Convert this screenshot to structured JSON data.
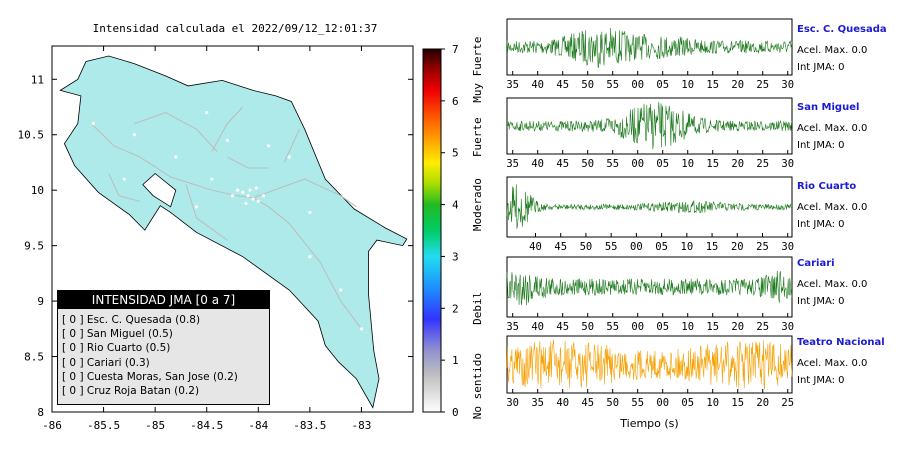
{
  "map_title": "Intensidad calculada el 2022/09/12_12:01:37",
  "colorbar": {
    "ticks": [
      "0",
      "1",
      "2",
      "3",
      "4",
      "5",
      "6",
      "7"
    ],
    "labels": [
      {
        "text": "No sentido",
        "at": 0.5
      },
      {
        "text": "Debil",
        "at": 2
      },
      {
        "text": "Moderado",
        "at": 4
      },
      {
        "text": "Fuerte",
        "at": 5.3
      },
      {
        "text": "Muy Fuerte",
        "at": 6.6
      }
    ]
  },
  "legend": {
    "header": "INTENSIDAD JMA [0 a 7]",
    "items": [
      "[ 0 ]  Esc. C. Quesada (0.8)",
      "[ 0 ]  San Miguel (0.5)",
      "[ 0 ]  Rio Cuarto (0.5)",
      "[ 0 ]  Cariari (0.3)",
      "[ 0 ]  Cuesta Moras, San Jose (0.2)",
      "[ 0 ]  Cruz Roja Batan (0.2)"
    ]
  },
  "stations": [
    {
      "name": "Esc. C. Quesada",
      "acel": "Acel. Max. 0.0",
      "int": "Int JMA: 0"
    },
    {
      "name": "San Miguel",
      "acel": "Acel. Max. 0.0",
      "int": "Int JMA: 0"
    },
    {
      "name": "Rio Cuarto",
      "acel": "Acel. Max. 0.0",
      "int": "Int JMA: 0"
    },
    {
      "name": "Cariari",
      "acel": "Acel. Max. 0.0",
      "int": "Int JMA: 0"
    },
    {
      "name": "Teatro Nacional",
      "acel": "Acel. Max. 0.0",
      "int": "Int JMA: 0"
    }
  ],
  "xlabel": "Tiempo (s)",
  "colors": {
    "trace": "#1e7a1e",
    "trace_highlight": "#f5a000",
    "land": "#aeeaea",
    "station_name": "#1b1bd0"
  },
  "chart_data": [
    {
      "type": "scatter",
      "title": "Intensidad calculada el 2022/09/12_12:01:37",
      "xlim": [
        -86,
        -82.5
      ],
      "ylim": [
        8,
        11.3
      ],
      "x_ticks": [
        "-86",
        "-85.5",
        "-85",
        "-84.5",
        "-84",
        "-83.5",
        "-83"
      ],
      "y_ticks": [
        "8",
        "8.5",
        "9",
        "9.5",
        "10",
        "10.5",
        "11"
      ],
      "x_tick_values": [
        -86,
        -85.5,
        -85,
        -84.5,
        -84,
        -83.5,
        -83
      ],
      "y_tick_values": [
        8,
        8.5,
        9,
        9.5,
        10,
        10.5,
        11
      ]
    },
    {
      "type": "line",
      "series": [
        {
          "name": "Esc. C. Quesada"
        }
      ],
      "tick_labels": [
        "35",
        "40",
        "45",
        "50",
        "55",
        "00",
        "05",
        "10",
        "15",
        "20",
        "25",
        "30"
      ]
    },
    {
      "type": "line",
      "series": [
        {
          "name": "San Miguel"
        }
      ],
      "tick_labels": [
        "35",
        "40",
        "45",
        "50",
        "55",
        "00",
        "05",
        "10",
        "15",
        "20",
        "25",
        "30"
      ]
    },
    {
      "type": "line",
      "series": [
        {
          "name": "Rio Cuarto"
        }
      ],
      "tick_labels": [
        "40",
        "45",
        "50",
        "55",
        "00",
        "05",
        "10",
        "15",
        "20",
        "25",
        "30"
      ]
    },
    {
      "type": "line",
      "series": [
        {
          "name": "Cariari"
        }
      ],
      "tick_labels": [
        "35",
        "40",
        "45",
        "50",
        "55",
        "00",
        "05",
        "10",
        "15",
        "20",
        "25",
        "30"
      ]
    },
    {
      "type": "line",
      "series": [
        {
          "name": "Teatro Nacional"
        }
      ],
      "tick_labels": [
        "30",
        "35",
        "40",
        "45",
        "50",
        "55",
        "00",
        "05",
        "10",
        "15",
        "20",
        "25"
      ]
    }
  ]
}
